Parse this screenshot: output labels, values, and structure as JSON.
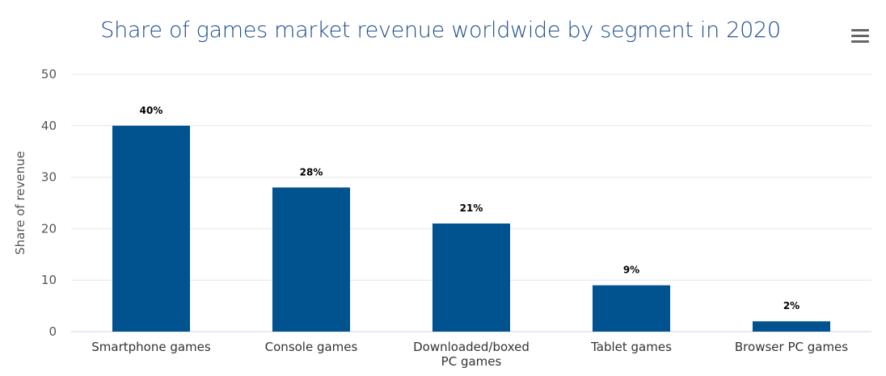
{
  "header": {
    "menu_icon": "hamburger-menu-icon"
  },
  "chart_data": {
    "type": "bar",
    "title": "Share of games market revenue worldwide by segment in 2020",
    "xlabel": "",
    "ylabel": "Share of revenue",
    "ylim": [
      0,
      50
    ],
    "yticks": [
      0,
      10,
      20,
      30,
      40,
      50
    ],
    "categories": [
      [
        "Smartphone games"
      ],
      [
        "Console games"
      ],
      [
        "Downloaded/boxed",
        "PC games"
      ],
      [
        "Tablet games"
      ],
      [
        "Browser PC games"
      ]
    ],
    "values": [
      40,
      28,
      21,
      9,
      2
    ],
    "data_labels": [
      "40%",
      "28%",
      "21%",
      "9%",
      "2%"
    ],
    "bar_color": "#00538f",
    "grid": true,
    "legend": "none"
  }
}
